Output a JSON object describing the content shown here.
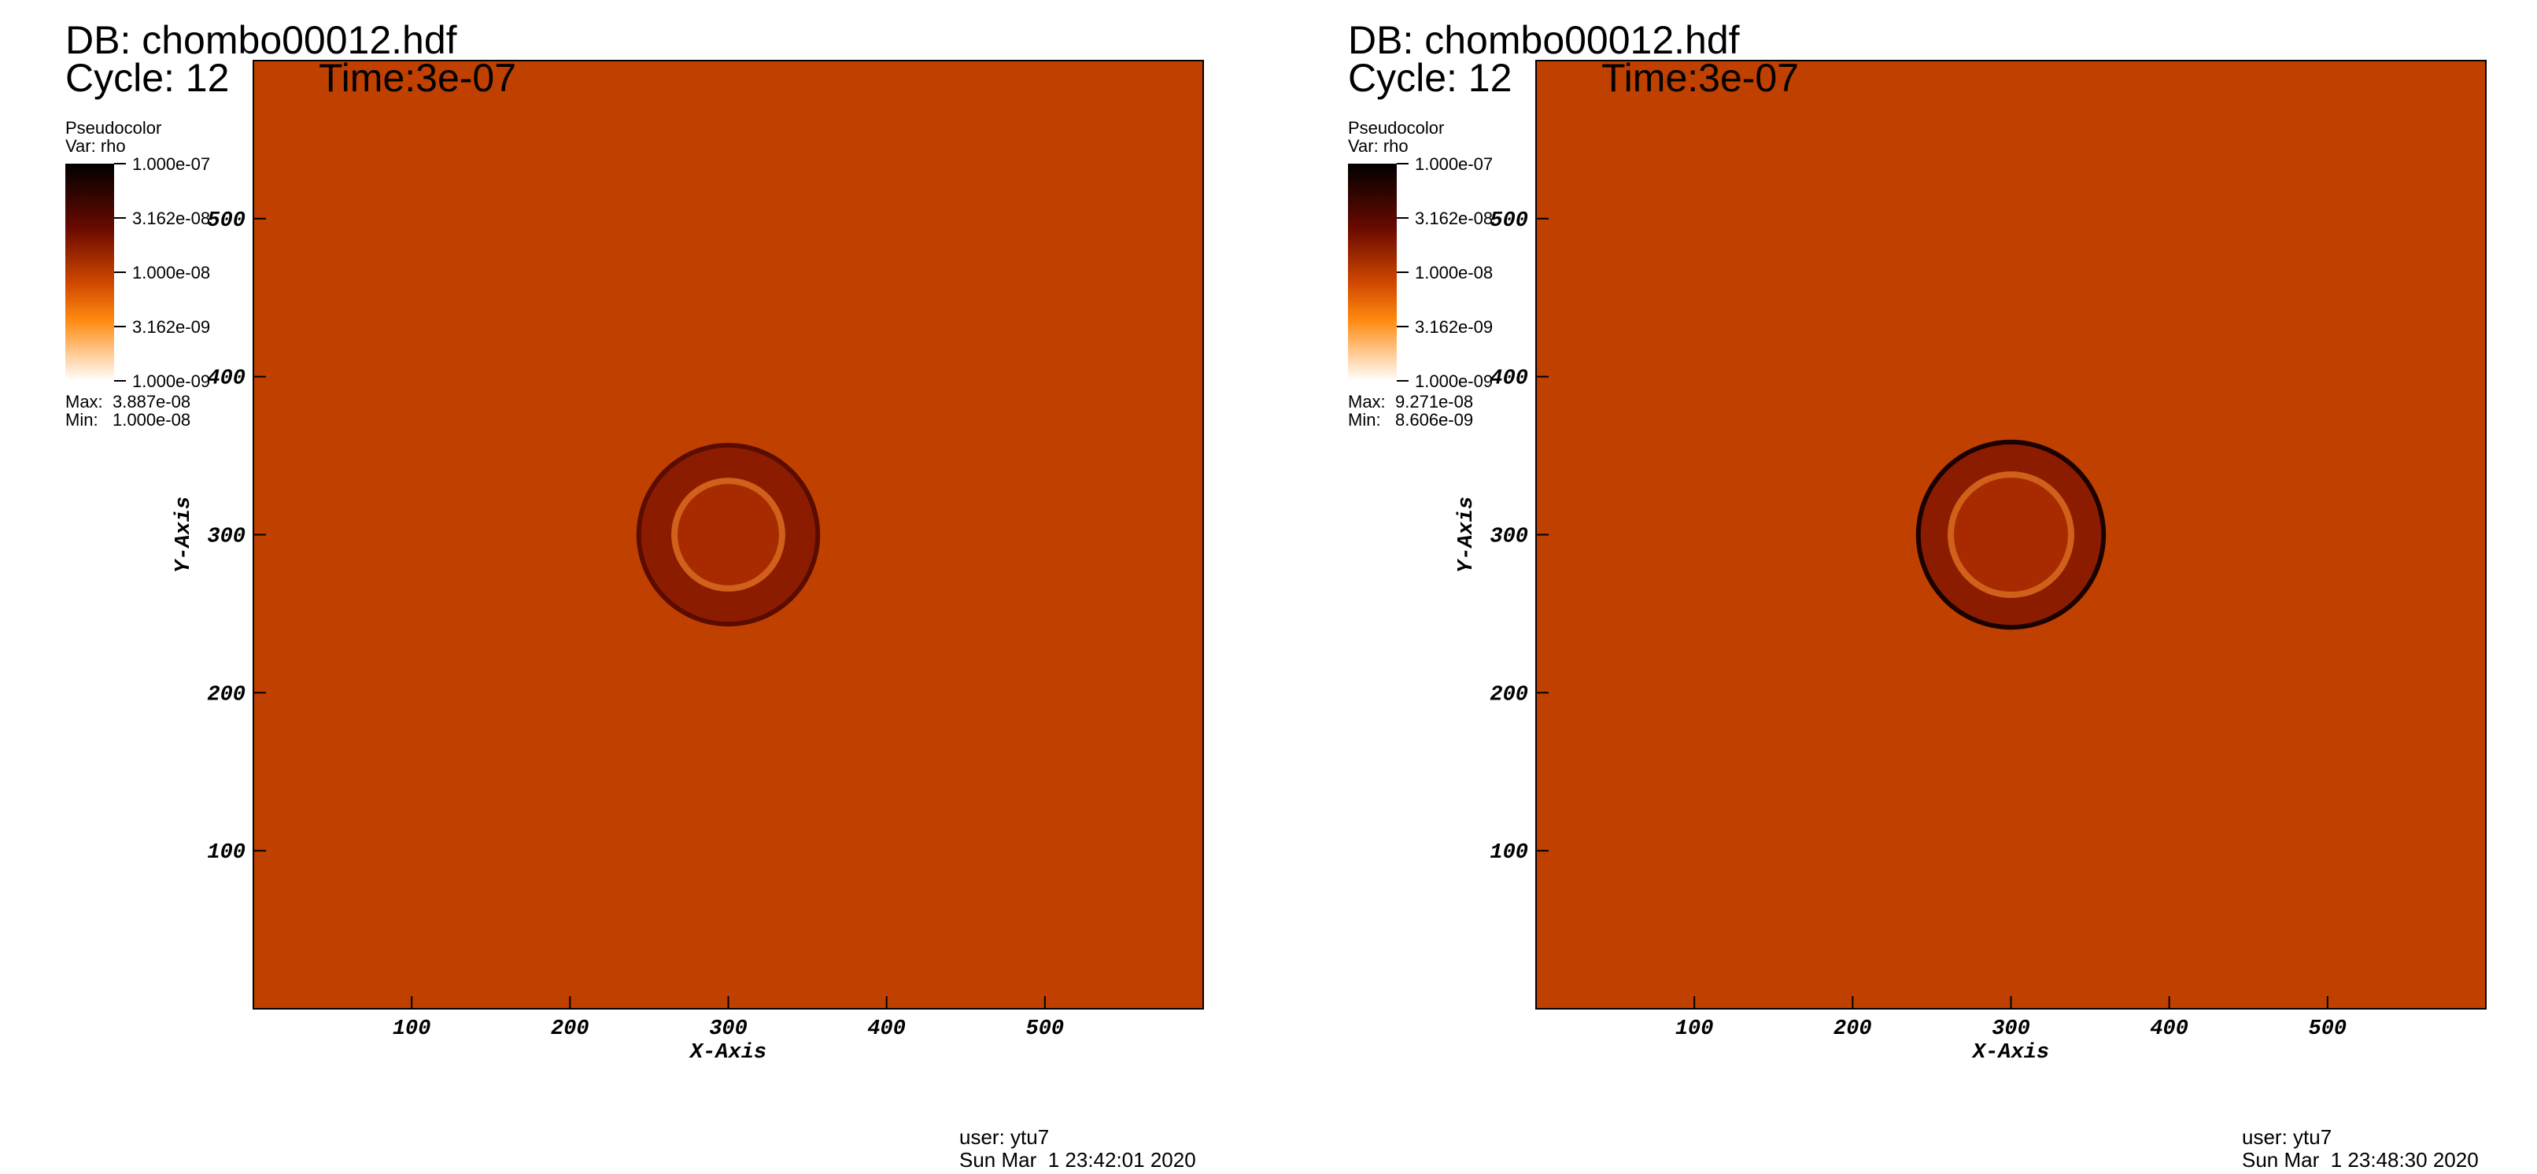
{
  "chart_data": [
    {
      "type": "pseudocolor",
      "title": "DB: chombo00012.hdf",
      "cycle": "Cycle: 12",
      "time": "Time:3e-07",
      "legend_title": "Pseudocolor",
      "variable": "Var: rho",
      "x_label": "X-Axis",
      "y_label": "Y-Axis",
      "xlim": [
        0,
        600
      ],
      "ylim": [
        0,
        600
      ],
      "xticks": [
        100,
        200,
        300,
        400,
        500
      ],
      "yticks": [
        100,
        200,
        300,
        400,
        500
      ],
      "clim": [
        1e-09,
        1e-07
      ],
      "color_scale": "log",
      "cticks": [
        {
          "value": 1e-07,
          "label": "1.000e-07"
        },
        {
          "value": 3.162e-08,
          "label": "3.162e-08"
        },
        {
          "value": 1e-08,
          "label": "1.000e-08"
        },
        {
          "value": 3.162e-09,
          "label": "3.162e-09"
        },
        {
          "value": 1e-09,
          "label": "1.000e-09"
        }
      ],
      "stats": [
        {
          "name": "Max:",
          "value": 3.887e-08,
          "label": "3.887e-08"
        },
        {
          "name": "Min:",
          "value": 1e-08,
          "label": "1.000e-08"
        }
      ],
      "background_color": "#c04000",
      "circle": {
        "x": 300,
        "y": 300,
        "r": 58,
        "inner_r": 36,
        "outer_color": "#8c1c00",
        "ring_color": "#d0601a",
        "core_color": "#a82a00",
        "edge_color": "#5a0c00"
      },
      "user": "user: ytu7",
      "date": "Sun Mar  1 23:42:01 2020"
    },
    {
      "type": "pseudocolor",
      "title": "DB: chombo00012.hdf",
      "cycle": "Cycle: 12",
      "time": "Time:3e-07",
      "legend_title": "Pseudocolor",
      "variable": "Var: rho",
      "x_label": "X-Axis",
      "y_label": "Y-Axis",
      "xlim": [
        0,
        600
      ],
      "ylim": [
        0,
        600
      ],
      "xticks": [
        100,
        200,
        300,
        400,
        500
      ],
      "yticks": [
        100,
        200,
        300,
        400,
        500
      ],
      "clim": [
        1e-09,
        1e-07
      ],
      "color_scale": "log",
      "cticks": [
        {
          "value": 1e-07,
          "label": "1.000e-07"
        },
        {
          "value": 3.162e-08,
          "label": "3.162e-08"
        },
        {
          "value": 1e-08,
          "label": "1.000e-08"
        },
        {
          "value": 3.162e-09,
          "label": "3.162e-09"
        },
        {
          "value": 1e-09,
          "label": "1.000e-09"
        }
      ],
      "stats": [
        {
          "name": "Max:",
          "value": 9.271e-08,
          "label": "9.271e-08"
        },
        {
          "name": "Min:",
          "value": 8.606e-09,
          "label": "8.606e-09"
        }
      ],
      "background_color": "#c04000",
      "circle": {
        "x": 300,
        "y": 300,
        "r": 60,
        "inner_r": 40,
        "outer_color": "#8c1c00",
        "ring_color": "#d0601a",
        "core_color": "#a82a00",
        "edge_color": "#1a0200"
      },
      "user": "user: ytu7",
      "date": "Sun Mar  1 23:48:30 2020"
    }
  ]
}
